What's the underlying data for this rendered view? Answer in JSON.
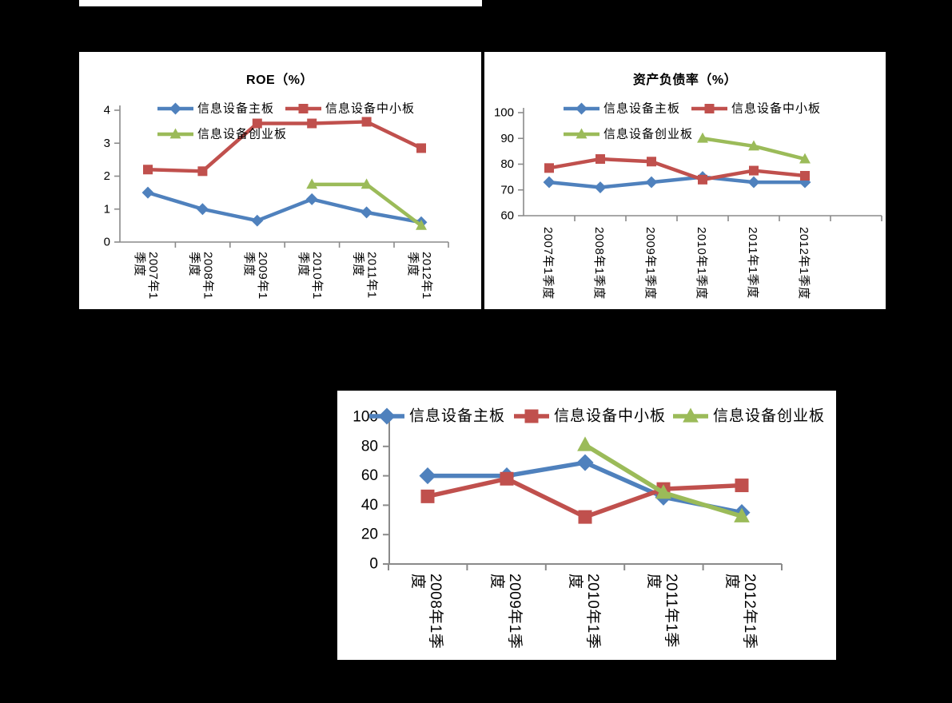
{
  "page": {
    "background": "#000000",
    "panel_background": "#ffffff"
  },
  "colors": {
    "blue": "#4F81BD",
    "red": "#C0504D",
    "green": "#9BBB59",
    "axis_line": "#8A8A8A",
    "text": "#000000"
  },
  "chart_data": [
    {
      "type": "line",
      "title": "ROE（%）",
      "categories": [
        "2007年1季度",
        "2008年1季度",
        "2009年1季度",
        "2010年1季度",
        "2011年1季度",
        "2012年1季度"
      ],
      "x_tick_lines": [
        [
          "2007年1",
          "季度"
        ],
        [
          "2008年1",
          "季度"
        ],
        [
          "2009年1",
          "季度"
        ],
        [
          "2010年1",
          "季度"
        ],
        [
          "2011年1",
          "季度"
        ],
        [
          "2012年1",
          "季度"
        ]
      ],
      "ylim": [
        0,
        4
      ],
      "yticks": [
        0,
        1,
        2,
        3,
        4
      ],
      "grid": false,
      "legend_position": "top-inside-two-rows",
      "series": [
        {
          "name": "信息设备主板",
          "color": "blue",
          "marker": "diamond",
          "values": [
            1.5,
            1.0,
            0.65,
            1.3,
            0.9,
            0.6
          ]
        },
        {
          "name": "信息设备中小板",
          "color": "red",
          "marker": "square",
          "values": [
            2.2,
            2.15,
            3.6,
            3.6,
            3.65,
            2.85
          ]
        },
        {
          "name": "信息设备创业板",
          "color": "green",
          "marker": "triangle",
          "values": [
            null,
            null,
            null,
            1.75,
            1.75,
            0.5
          ]
        }
      ]
    },
    {
      "type": "line",
      "title": "资产负债率（%）",
      "categories": [
        "2007年1季度",
        "2008年1季度",
        "2009年1季度",
        "2010年1季度",
        "2011年1季度",
        "2012年1季度"
      ],
      "x_tick_lines": [
        [
          "2007年1季度"
        ],
        [
          "2008年1季度"
        ],
        [
          "2009年1季度"
        ],
        [
          "2010年1季度"
        ],
        [
          "2011年1季度"
        ],
        [
          "2012年1季度"
        ]
      ],
      "ylim": [
        60,
        100
      ],
      "yticks": [
        60,
        70,
        80,
        90,
        100
      ],
      "grid": false,
      "legend_position": "top-inside-two-rows",
      "series": [
        {
          "name": "信息设备主板",
          "color": "blue",
          "marker": "diamond",
          "values": [
            73,
            71,
            73,
            75,
            73,
            73
          ]
        },
        {
          "name": "信息设备中小板",
          "color": "red",
          "marker": "square",
          "values": [
            78.5,
            82,
            81,
            74,
            77.5,
            75.5
          ]
        },
        {
          "name": "信息设备创业板",
          "color": "green",
          "marker": "triangle",
          "values": [
            null,
            null,
            null,
            90,
            87,
            82
          ]
        }
      ]
    },
    {
      "type": "line",
      "title": "",
      "categories": [
        "2008年1季度",
        "2009年1季度",
        "2010年1季度",
        "2011年1季度",
        "2012年1季度"
      ],
      "x_tick_lines": [
        [
          "2008年1季",
          "度"
        ],
        [
          "2009年1季",
          "度"
        ],
        [
          "2010年1季",
          "度"
        ],
        [
          "2011年1季",
          "度"
        ],
        [
          "2012年1季",
          "度"
        ]
      ],
      "ylim": [
        0,
        100
      ],
      "yticks": [
        0,
        20,
        40,
        60,
        80,
        100
      ],
      "grid": false,
      "legend_position": "top-single-row",
      "series": [
        {
          "name": "信息设备主板",
          "color": "blue",
          "marker": "diamond",
          "values": [
            60,
            60,
            69,
            45.5,
            35
          ]
        },
        {
          "name": "信息设备中小板",
          "color": "red",
          "marker": "square",
          "values": [
            46,
            58,
            32,
            51,
            53.5
          ]
        },
        {
          "name": "信息设备创业板",
          "color": "green",
          "marker": "triangle",
          "values": [
            null,
            null,
            81,
            48.5,
            32.5
          ]
        }
      ]
    }
  ]
}
